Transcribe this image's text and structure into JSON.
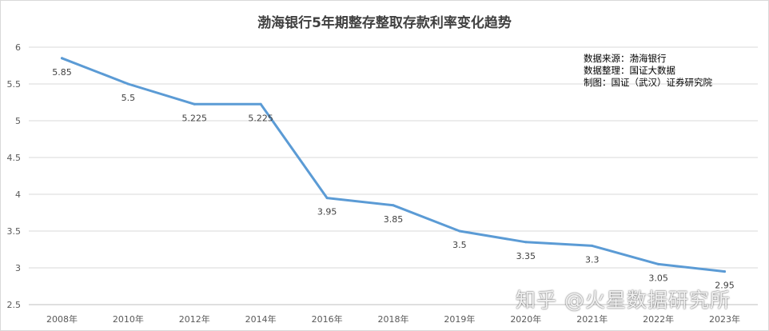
{
  "chart_data": {
    "type": "line",
    "title": "渤海银行5年期整存整取存款利率变化趋势",
    "categories": [
      "2008年",
      "2010年",
      "2012年",
      "2014年",
      "2016年",
      "2018年",
      "2019年",
      "2020年",
      "2021年",
      "2022年",
      "2023年"
    ],
    "values": [
      5.85,
      5.5,
      5.225,
      5.225,
      3.95,
      3.85,
      3.5,
      3.35,
      3.3,
      3.05,
      2.95
    ],
    "data_labels": [
      "5.85",
      "5.5",
      "5.225",
      "5.225",
      "3.95",
      "3.85",
      "3.5",
      "3.35",
      "3.3",
      "3.05",
      "2.95"
    ],
    "yticks": [
      "2.5",
      "3",
      "3.5",
      "4",
      "4.5",
      "5",
      "5.5",
      "6"
    ],
    "ylim": [
      2.5,
      6
    ],
    "grid": true,
    "series_color": "#5b9bd5"
  },
  "notes": {
    "line1": "数据来源：渤海银行",
    "line2": "数据整理：国证大数据",
    "line3": "制图：国证（武汉）证券研究院"
  },
  "watermark": "知乎 @火星数据研究所"
}
